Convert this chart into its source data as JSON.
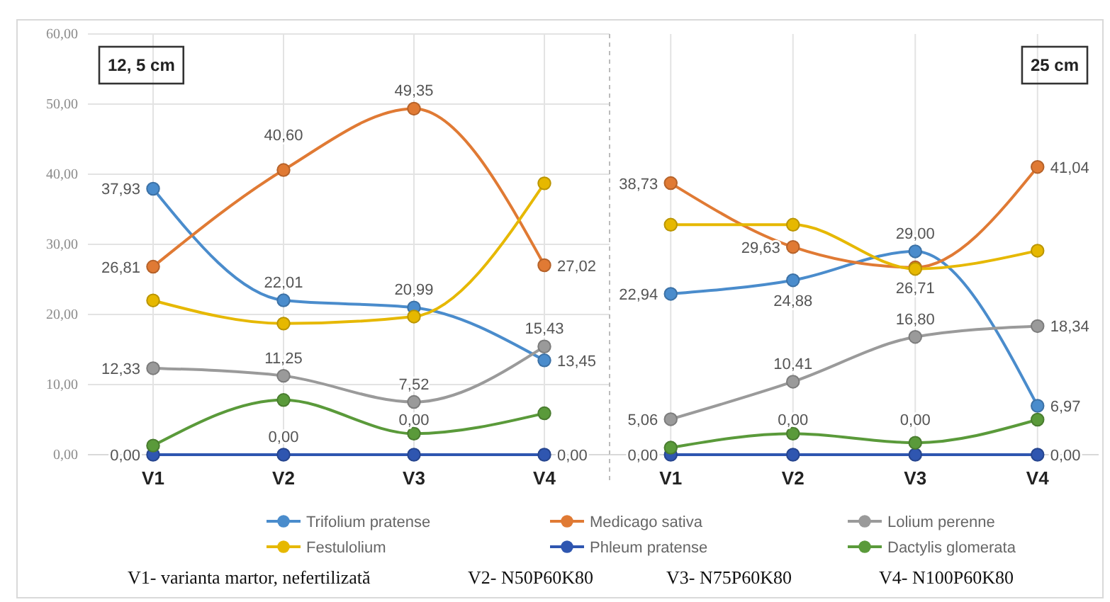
{
  "chart_data": [
    {
      "type": "line",
      "title": "12, 5 cm",
      "categories": [
        "V1",
        "V2",
        "V3",
        "V4"
      ],
      "ylim": [
        0,
        60
      ],
      "yticks": [
        {
          "value": 0,
          "label": "0,00"
        },
        {
          "value": 10,
          "label": "10,00"
        },
        {
          "value": 20,
          "label": "20,00"
        },
        {
          "value": 30,
          "label": "30,00"
        },
        {
          "value": 40,
          "label": "40,00"
        },
        {
          "value": 50,
          "label": "50,00"
        },
        {
          "value": 60,
          "label": "60,00"
        }
      ],
      "grid": true,
      "marker": "circle",
      "legend": "bottom",
      "series": [
        {
          "name": "Trifolium pratense",
          "color": "#4a8ccc",
          "values": [
            37.93,
            22.01,
            20.99,
            13.45
          ],
          "value_labels": [
            "37,93",
            "22,01",
            "20,99",
            "13,45"
          ]
        },
        {
          "name": "Medicago sativa",
          "color": "#e07a34",
          "values": [
            26.81,
            40.6,
            49.35,
            27.02
          ],
          "value_labels": [
            "26,81",
            "40,60",
            "49,35",
            "27,02"
          ]
        },
        {
          "name": "Lolium perenne",
          "color": "#9a9a9a",
          "values": [
            12.33,
            11.25,
            7.52,
            15.43
          ],
          "value_labels": [
            "12,33",
            "11,25",
            "7,52",
            "15,43"
          ]
        },
        {
          "name": "Festulolium",
          "color": "#e6b800",
          "values": [
            22.0,
            18.7,
            19.7,
            38.7
          ]
        },
        {
          "name": "Phleum pratense",
          "color": "#2f56b0",
          "values": [
            0,
            0,
            0,
            0
          ],
          "value_labels": [
            "0,00",
            "0,00",
            "0,00",
            "0,00"
          ]
        },
        {
          "name": "Dactylis glomerata",
          "color": "#5a9a3a",
          "values": [
            1.3,
            7.8,
            3.0,
            5.9
          ]
        }
      ],
      "annotations": [
        "V1- varianta martor, nefertilizată",
        "V2- N50P60K80",
        "V3- N75P60K80",
        "V4- N100P60K80"
      ]
    },
    {
      "type": "line",
      "title": "25 cm",
      "categories": [
        "V1",
        "V2",
        "V3",
        "V4"
      ],
      "ylim": [
        0,
        60
      ],
      "tick_labels": "x",
      "grid": true,
      "marker": "circle",
      "series": [
        {
          "color": "#4a8ccc",
          "values": [
            22.94,
            24.88,
            29.0,
            6.97
          ],
          "value_labels": [
            "22,94",
            "24,88",
            "29,00",
            "6,97"
          ]
        },
        {
          "color": "#e07a34",
          "values": [
            38.73,
            29.63,
            26.71,
            41.04
          ],
          "value_labels": [
            "38,73",
            "29,63",
            "26,71",
            "41,04"
          ]
        },
        {
          "color": "#9a9a9a",
          "values": [
            5.06,
            10.41,
            16.8,
            18.34
          ],
          "value_labels": [
            "5,06",
            "10,41",
            "16,80",
            "18,34"
          ]
        },
        {
          "color": "#e6b800",
          "values": [
            32.8,
            32.8,
            26.5,
            29.1
          ]
        },
        {
          "color": "#2f56b0",
          "values": [
            0,
            0,
            0,
            0
          ],
          "value_labels": [
            "0,00",
            "0,00",
            "0,00",
            "0,00"
          ]
        },
        {
          "color": "#5a9a3a",
          "values": [
            1.0,
            3.0,
            1.7,
            5.0
          ]
        }
      ]
    }
  ]
}
